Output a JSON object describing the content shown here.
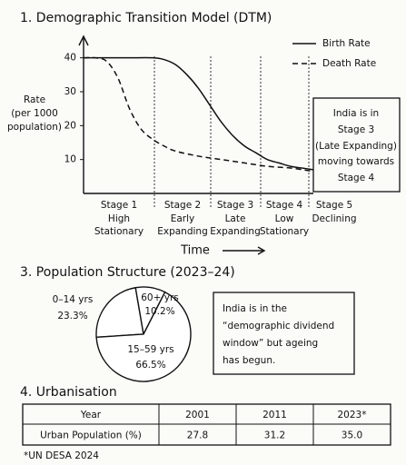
{
  "chart_data": [
    {
      "type": "line",
      "title": "1. Demographic Transition Model (DTM)",
      "ylabel": [
        "Rate",
        "(per 1000",
        "population)"
      ],
      "xlabel": "Time",
      "xlim": [
        0,
        100
      ],
      "ylim": [
        0,
        45
      ],
      "yticks": [
        10,
        20,
        30,
        40
      ],
      "legend": "upper right",
      "series": [
        {
          "name": "Birth Rate",
          "color": "#111111",
          "style": "solid",
          "x": [
            0,
            10,
            20,
            30,
            35,
            40,
            45,
            50,
            55,
            60,
            65,
            70,
            75,
            80,
            85,
            90,
            95,
            100
          ],
          "values": [
            40,
            40,
            40,
            40,
            39.5,
            38,
            35,
            31,
            26,
            21,
            17,
            14,
            12,
            10,
            9,
            8,
            7.5,
            7
          ]
        },
        {
          "name": "Death Rate",
          "color": "#111111",
          "style": "dashed",
          "x": [
            0,
            5,
            10,
            15,
            20,
            25,
            30,
            35,
            40,
            50,
            60,
            70,
            80,
            90,
            100
          ],
          "values": [
            40,
            40,
            39,
            34,
            25,
            19,
            16,
            14,
            12.5,
            11,
            10,
            9,
            8,
            7.5,
            6.5
          ]
        }
      ],
      "stages": [
        {
          "name": "Stage 1",
          "label": [
            "High",
            "Stationary"
          ]
        },
        {
          "name": "Stage 2",
          "label": [
            "Early",
            "Expanding"
          ]
        },
        {
          "name": "Stage 3",
          "label": [
            "Late",
            "Expanding"
          ]
        },
        {
          "name": "Stage 4",
          "label": [
            "Low",
            "Stationary"
          ]
        },
        {
          "name": "Stage 5",
          "label": [
            "Declining"
          ]
        }
      ],
      "annotation": [
        "India is in",
        "Stage 3",
        "(Late Expanding)",
        "moving towards",
        "Stage 4"
      ]
    },
    {
      "type": "pie",
      "title": "3. Population Structure (2023–24)",
      "categories": [
        "0–14 yrs",
        "60+ yrs",
        "15–59 yrs"
      ],
      "values": [
        23.3,
        10.2,
        66.5
      ],
      "value_labels": [
        "23.3%",
        "10.2%",
        "66.5%"
      ],
      "color": "#ffffff",
      "annotation": [
        "India is in the",
        "“demographic dividend",
        "window” but ageing",
        "has begun."
      ]
    }
  ],
  "urbanisation": {
    "title": "4. Urbanisation",
    "table": {
      "header": [
        "Year",
        "2001",
        "2011",
        "2023*"
      ],
      "rows": [
        [
          "Urban Population (%)",
          "27.8",
          "31.2",
          "35.0"
        ]
      ]
    },
    "footnote": "*UN DESA 2024"
  }
}
